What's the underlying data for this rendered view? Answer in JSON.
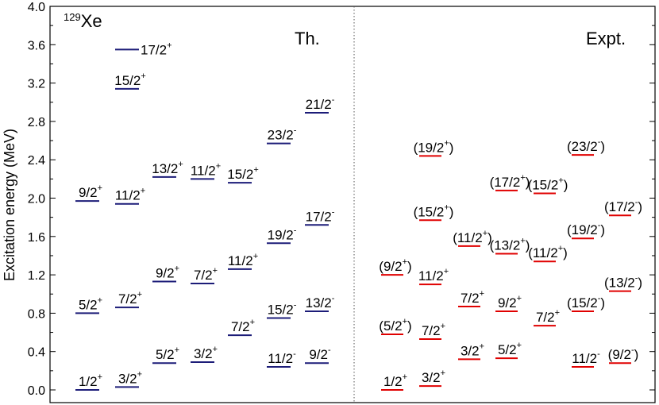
{
  "chart_data": {
    "type": "level-scheme",
    "nucleus_label": {
      "mass": "129",
      "element": "Xe"
    },
    "ylabel": "Excitation energy (MeV)",
    "ylim": [
      0.0,
      4.0
    ],
    "yticks": [
      "0.0",
      "0.4",
      "0.8",
      "1.2",
      "1.6",
      "2.0",
      "2.4",
      "2.8",
      "3.2",
      "3.6",
      "4.0"
    ],
    "colors": {
      "theory": "#1c1c78",
      "experiment": "#e00000",
      "divider": "#555555"
    },
    "panels": [
      {
        "name": "Th.",
        "levels": [
          {
            "column": 1,
            "energy": 0.0,
            "spin": "1/2",
            "parity": "+",
            "label_pos": "above"
          },
          {
            "column": 1,
            "energy": 0.8,
            "spin": "5/2",
            "parity": "+",
            "label_pos": "above"
          },
          {
            "column": 1,
            "energy": 1.97,
            "spin": "9/2",
            "parity": "+",
            "label_pos": "above"
          },
          {
            "column": 2,
            "energy": 0.03,
            "spin": "3/2",
            "parity": "+",
            "label_pos": "above"
          },
          {
            "column": 2,
            "energy": 0.86,
            "spin": "7/2",
            "parity": "+",
            "label_pos": "above"
          },
          {
            "column": 2,
            "energy": 1.94,
            "spin": "11/2",
            "parity": "+",
            "label_pos": "above"
          },
          {
            "column": 2,
            "energy": 3.14,
            "spin": "15/2",
            "parity": "+",
            "label_pos": "above"
          },
          {
            "column": 2,
            "energy": 3.55,
            "spin": "17/2",
            "parity": "+",
            "label_pos": "right"
          },
          {
            "column": 3,
            "energy": 0.28,
            "spin": "5/2",
            "parity": "+",
            "label_pos": "above"
          },
          {
            "column": 3,
            "energy": 1.13,
            "spin": "9/2",
            "parity": "+",
            "label_pos": "above"
          },
          {
            "column": 3,
            "energy": 2.22,
            "spin": "13/2",
            "parity": "+",
            "label_pos": "above"
          },
          {
            "column": 4,
            "energy": 0.29,
            "spin": "3/2",
            "parity": "+",
            "label_pos": "above"
          },
          {
            "column": 4,
            "energy": 1.11,
            "spin": "7/2",
            "parity": "+",
            "label_pos": "above"
          },
          {
            "column": 4,
            "energy": 2.2,
            "spin": "11/2",
            "parity": "+",
            "label_pos": "above"
          },
          {
            "column": 5,
            "energy": 0.57,
            "spin": "7/2",
            "parity": "+",
            "label_pos": "above"
          },
          {
            "column": 5,
            "energy": 1.26,
            "spin": "11/2",
            "parity": "+",
            "label_pos": "above"
          },
          {
            "column": 5,
            "energy": 2.16,
            "spin": "15/2",
            "parity": "+",
            "label_pos": "above"
          },
          {
            "column": 6,
            "energy": 0.24,
            "spin": "11/2",
            "parity": "-",
            "label_pos": "above"
          },
          {
            "column": 6,
            "energy": 0.75,
            "spin": "15/2",
            "parity": "-",
            "label_pos": "above"
          },
          {
            "column": 6,
            "energy": 1.53,
            "spin": "19/2",
            "parity": "-",
            "label_pos": "above"
          },
          {
            "column": 6,
            "energy": 2.57,
            "spin": "23/2",
            "parity": "-",
            "label_pos": "above"
          },
          {
            "column": 7,
            "energy": 0.28,
            "spin": "9/2",
            "parity": "-",
            "label_pos": "above"
          },
          {
            "column": 7,
            "energy": 0.82,
            "spin": "13/2",
            "parity": "-",
            "label_pos": "above"
          },
          {
            "column": 7,
            "energy": 1.72,
            "spin": "17/2",
            "parity": "-",
            "label_pos": "above"
          },
          {
            "column": 7,
            "energy": 2.89,
            "spin": "21/2",
            "parity": "-",
            "label_pos": "above"
          }
        ]
      },
      {
        "name": "Expt.",
        "levels": [
          {
            "column": 1,
            "energy": 0.0,
            "spin": "1/2",
            "parity": "+",
            "tentative": false
          },
          {
            "column": 1,
            "energy": 0.58,
            "spin": "5/2",
            "parity": "+",
            "tentative": true
          },
          {
            "column": 1,
            "energy": 1.2,
            "spin": "9/2",
            "parity": "+",
            "tentative": true
          },
          {
            "column": 2,
            "energy": 0.04,
            "spin": "3/2",
            "parity": "+",
            "tentative": false
          },
          {
            "column": 2,
            "energy": 0.53,
            "spin": "7/2",
            "parity": "+",
            "tentative": false
          },
          {
            "column": 2,
            "energy": 1.1,
            "spin": "11/2",
            "parity": "+",
            "tentative": false
          },
          {
            "column": 2,
            "energy": 1.77,
            "spin": "15/2",
            "parity": "+",
            "tentative": true
          },
          {
            "column": 2,
            "energy": 2.44,
            "spin": "19/2",
            "parity": "+",
            "tentative": true
          },
          {
            "column": 3,
            "energy": 0.32,
            "spin": "3/2",
            "parity": "+",
            "tentative": false
          },
          {
            "column": 3,
            "energy": 0.87,
            "spin": "7/2",
            "parity": "+",
            "tentative": false
          },
          {
            "column": 3,
            "energy": 1.5,
            "spin": "11/2",
            "parity": "+",
            "tentative": true
          },
          {
            "column": 4,
            "energy": 0.33,
            "spin": "5/2",
            "parity": "+",
            "tentative": false
          },
          {
            "column": 4,
            "energy": 0.82,
            "spin": "9/2",
            "parity": "+",
            "tentative": false
          },
          {
            "column": 4,
            "energy": 1.42,
            "spin": "13/2",
            "parity": "+",
            "tentative": true
          },
          {
            "column": 4,
            "energy": 2.08,
            "spin": "17/2",
            "parity": "+",
            "tentative": true
          },
          {
            "column": 5,
            "energy": 0.67,
            "spin": "7/2",
            "parity": "+",
            "tentative": false
          },
          {
            "column": 5,
            "energy": 1.34,
            "spin": "11/2",
            "parity": "+",
            "tentative": true
          },
          {
            "column": 5,
            "energy": 2.05,
            "spin": "15/2",
            "parity": "+",
            "tentative": true
          },
          {
            "column": 6,
            "energy": 0.24,
            "spin": "11/2",
            "parity": "-",
            "tentative": false
          },
          {
            "column": 6,
            "energy": 0.82,
            "spin": "15/2",
            "parity": "-",
            "tentative": true
          },
          {
            "column": 6,
            "energy": 1.58,
            "spin": "19/2",
            "parity": "-",
            "tentative": true
          },
          {
            "column": 6,
            "energy": 2.45,
            "spin": "23/2",
            "parity": "-",
            "tentative": true
          },
          {
            "column": 7,
            "energy": 0.28,
            "spin": "9/2",
            "parity": "-",
            "tentative": true
          },
          {
            "column": 7,
            "energy": 1.03,
            "spin": "13/2",
            "parity": "-",
            "tentative": true
          },
          {
            "column": 7,
            "energy": 1.82,
            "spin": "17/2",
            "parity": "-",
            "tentative": true
          }
        ]
      }
    ]
  }
}
